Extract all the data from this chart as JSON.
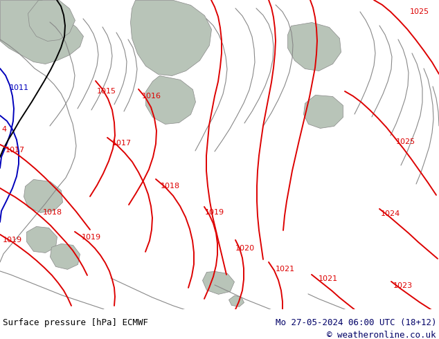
{
  "title_left": "Surface pressure [hPa] ECMWF",
  "title_right": "Mo 27-05-2024 06:00 UTC (18+12)",
  "copyright": "© weatheronline.co.uk",
  "land_color": "#b8e0a0",
  "sea_color": "#c0c8bc",
  "bottom_bar_color": "#ffffff",
  "isobar_red": "#dd0000",
  "isobar_blue": "#0000bb",
  "isobar_black": "#000000",
  "coast_color": "#888888",
  "figsize": [
    6.34,
    4.9
  ],
  "dpi": 100
}
